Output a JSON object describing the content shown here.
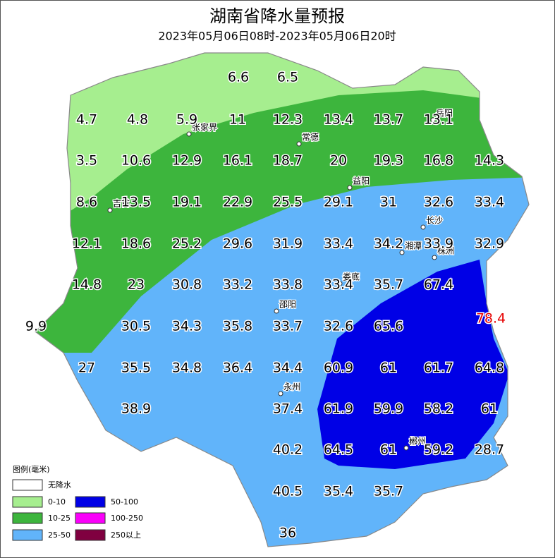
{
  "header": {
    "title": "湖南省降水量预报",
    "period": "2023年05月06日08时-2023年05月06日20时"
  },
  "legend": {
    "title": "图例(毫米)",
    "items": [
      {
        "label": "无降水",
        "color": "#ffffff"
      },
      {
        "label": "0-10",
        "color": "#a6ee8f"
      },
      {
        "label": "10-25",
        "color": "#3db53d"
      },
      {
        "label": "25-50",
        "color": "#61b4fa"
      },
      {
        "label": "50-100",
        "color": "#0000e6"
      },
      {
        "label": "100-250",
        "color": "#fa00fa"
      },
      {
        "label": "250以上",
        "color": "#800040"
      }
    ]
  },
  "cities": [
    "张家界",
    "常德",
    "益阳",
    "长沙",
    "湘潭",
    "株洲",
    "吉首",
    "娄底",
    "邵阳",
    "永州",
    "郴州",
    "岳阳"
  ],
  "forecast_values": [
    6.6,
    6.5,
    4.7,
    4.8,
    5.9,
    11,
    12.3,
    13.4,
    13.7,
    13.1,
    3.5,
    10.6,
    12.9,
    16.1,
    18.7,
    20,
    19.3,
    16.8,
    14.3,
    8.6,
    13.5,
    19.1,
    22.9,
    25.5,
    29.1,
    31,
    32.6,
    33.4,
    12.1,
    18.6,
    25.2,
    29.6,
    31.9,
    33.4,
    34.2,
    33.9,
    32.9,
    14.8,
    23,
    30.8,
    33.2,
    33.8,
    33.4,
    35.7,
    67.4,
    78.4,
    9.9,
    30.5,
    34.3,
    35.8,
    33.7,
    32.6,
    65.6,
    27,
    35.5,
    34.8,
    36.4,
    34.4,
    60.9,
    61,
    61.7,
    64.8,
    38.9,
    37.4,
    61.9,
    59.9,
    58.2,
    61,
    40.2,
    64.5,
    61,
    59.2,
    28.7,
    40.5,
    35.4,
    35.7,
    36
  ],
  "max_color": "#e60000"
}
